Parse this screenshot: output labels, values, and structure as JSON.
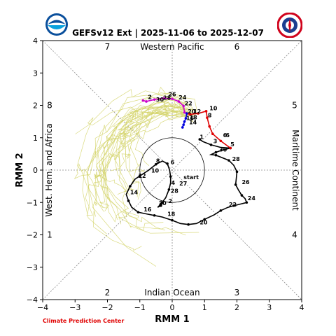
{
  "title": "GEFSv12 Ext | 2025-11-06 to 2025-12-07",
  "footer": "Climate Prediction Center",
  "chart_data": {
    "type": "scatter",
    "xlabel": "RMM 1",
    "ylabel": "RMM 2",
    "xlim": [
      -4,
      4
    ],
    "ylim": [
      -4,
      4
    ],
    "xticks": [
      -4,
      -3,
      -2,
      -1,
      0,
      1,
      2,
      3,
      4
    ],
    "yticks": [
      -4,
      -3,
      -2,
      -1,
      0,
      1,
      2,
      3,
      4
    ],
    "region_labels": {
      "top": "Western Pacific",
      "bottom": "Indian Ocean",
      "left": "West. Hem. and Africa",
      "right": "Maritime Continent"
    },
    "phase_labels": [
      {
        "phase": "1",
        "position": "left-lower"
      },
      {
        "phase": "2",
        "position": "bottom-left"
      },
      {
        "phase": "3",
        "position": "bottom-right"
      },
      {
        "phase": "4",
        "position": "right-lower"
      },
      {
        "phase": "5",
        "position": "right-upper"
      },
      {
        "phase": "6",
        "position": "top-right"
      },
      {
        "phase": "7",
        "position": "top-left"
      },
      {
        "phase": "8",
        "position": "left-upper"
      }
    ],
    "unit_circle_radius": 1,
    "observed": {
      "color": "#000000",
      "start_label": "start",
      "points": [
        {
          "day": "",
          "x": 0.85,
          "y": 0.95
        },
        {
          "day": "2",
          "x": 0.95,
          "y": 0.88
        },
        {
          "day": "3",
          "x": 1.2,
          "y": 0.78
        },
        {
          "day": "4",
          "x": 1.5,
          "y": 0.7
        },
        {
          "day": "5",
          "x": 1.8,
          "y": 0.68
        },
        {
          "day": "",
          "x": 1.55,
          "y": 0.62
        },
        {
          "day": "",
          "x": 1.35,
          "y": 0.55
        },
        {
          "day": "",
          "x": 1.2,
          "y": 0.48
        },
        {
          "day": "",
          "x": 1.35,
          "y": 0.46
        },
        {
          "day": "",
          "x": 1.55,
          "y": 0.38
        },
        {
          "day": "",
          "x": 1.75,
          "y": 0.3
        },
        {
          "day": "",
          "x": 1.9,
          "y": 0.15
        },
        {
          "day": "",
          "x": 2.0,
          "y": -0.05
        },
        {
          "day": "",
          "x": 1.98,
          "y": -0.25
        },
        {
          "day": "",
          "x": 1.96,
          "y": -0.45
        },
        {
          "day": "",
          "x": 2.05,
          "y": -0.62
        },
        {
          "day": "",
          "x": 2.15,
          "y": -0.78
        },
        {
          "day": "",
          "x": 2.25,
          "y": -0.88
        },
        {
          "day": "",
          "x": 2.3,
          "y": -1.0
        },
        {
          "day": "",
          "x": 2.1,
          "y": -1.05
        },
        {
          "day": "",
          "x": 1.9,
          "y": -1.1
        },
        {
          "day": "",
          "x": 1.72,
          "y": -1.15
        },
        {
          "day": "",
          "x": 1.5,
          "y": -1.25
        },
        {
          "day": "",
          "x": 1.3,
          "y": -1.38
        },
        {
          "day": "",
          "x": 1.0,
          "y": -1.52
        },
        {
          "day": "",
          "x": 0.75,
          "y": -1.65
        },
        {
          "day": "",
          "x": 0.5,
          "y": -1.68
        },
        {
          "day": "",
          "x": 0.25,
          "y": -1.65
        },
        {
          "day": "",
          "x": 0.0,
          "y": -1.55
        },
        {
          "day": "",
          "x": -0.3,
          "y": -1.45
        },
        {
          "day": "",
          "x": -0.55,
          "y": -1.4
        },
        {
          "day": "",
          "x": -0.82,
          "y": -1.35
        },
        {
          "day": "",
          "x": -1.05,
          "y": -1.3
        },
        {
          "day": "",
          "x": -1.25,
          "y": -1.15
        },
        {
          "day": "",
          "x": -1.35,
          "y": -0.95
        },
        {
          "day": "",
          "x": -1.42,
          "y": -0.75
        },
        {
          "day": "",
          "x": -1.3,
          "y": -0.5
        },
        {
          "day": "",
          "x": -1.15,
          "y": -0.28
        },
        {
          "day": "",
          "x": -1.0,
          "y": -0.18
        },
        {
          "day": "",
          "x": -0.75,
          "y": -0.02
        },
        {
          "day": "",
          "x": -0.5,
          "y": 0.18
        },
        {
          "day": "",
          "x": -0.3,
          "y": 0.28
        },
        {
          "day": "",
          "x": -0.15,
          "y": 0.2
        },
        {
          "day": "",
          "x": -0.08,
          "y": 0.0
        },
        {
          "day": "",
          "x": -0.05,
          "y": -0.2
        },
        {
          "day": "",
          "x": -0.05,
          "y": -0.4
        },
        {
          "day": "",
          "x": -0.1,
          "y": -0.6
        },
        {
          "day": "",
          "x": -0.2,
          "y": -0.85
        },
        {
          "day": "",
          "x": -0.35,
          "y": -1.05
        },
        {
          "day": "",
          "x": -0.45,
          "y": -1.15
        },
        {
          "day": "",
          "x": -0.35,
          "y": -1.1
        },
        {
          "day": "",
          "x": -0.25,
          "y": -0.95
        }
      ],
      "day_labels": [
        {
          "text": "1",
          "x": 0.85,
          "y": 0.96
        },
        {
          "text": "3",
          "x": 1.27,
          "y": 0.83
        },
        {
          "text": "5",
          "x": 1.8,
          "y": 0.73
        },
        {
          "text": "6",
          "x": 1.57,
          "y": 1.02
        },
        {
          "text": "30",
          "x": 1.45,
          "y": 0.57
        },
        {
          "text": "28",
          "x": 1.85,
          "y": 0.28
        },
        {
          "text": "26",
          "x": 2.15,
          "y": -0.43
        },
        {
          "text": "24",
          "x": 2.33,
          "y": -0.93
        },
        {
          "text": "22",
          "x": 1.75,
          "y": -1.12
        },
        {
          "text": "20",
          "x": 0.85,
          "y": -1.68
        },
        {
          "text": "18",
          "x": -0.15,
          "y": -1.42
        },
        {
          "text": "16",
          "x": -0.88,
          "y": -1.28
        },
        {
          "text": "14",
          "x": -1.3,
          "y": -0.75
        },
        {
          "text": "12",
          "x": -1.05,
          "y": -0.24
        },
        {
          "text": "10",
          "x": -0.65,
          "y": -0.08
        },
        {
          "text": "8",
          "x": -0.5,
          "y": 0.23
        },
        {
          "text": "6",
          "x": -0.05,
          "y": 0.18
        },
        {
          "text": "4",
          "x": -0.03,
          "y": -0.45
        },
        {
          "text": "2",
          "x": -0.12,
          "y": -1.02
        },
        {
          "text": "30",
          "x": -0.42,
          "y": -1.08
        },
        {
          "text": "28",
          "x": -0.05,
          "y": -0.7
        },
        {
          "text": "27",
          "x": 0.22,
          "y": -0.48
        },
        {
          "text": "start",
          "x": 0.35,
          "y": -0.28
        }
      ]
    },
    "forecast_red": {
      "color": "#e00000",
      "points": [
        {
          "x": 1.8,
          "y": 0.68
        },
        {
          "x": 1.5,
          "y": 0.9
        },
        {
          "x": 1.25,
          "y": 1.12
        },
        {
          "x": 1.15,
          "y": 1.35
        },
        {
          "x": 1.08,
          "y": 1.62
        },
        {
          "x": 1.05,
          "y": 1.82
        },
        {
          "x": 0.8,
          "y": 1.75
        },
        {
          "x": 0.55,
          "y": 1.72
        },
        {
          "x": 0.45,
          "y": 1.75
        }
      ],
      "day_labels": [
        {
          "text": "10",
          "x": 1.15,
          "y": 1.85
        },
        {
          "text": "8",
          "x": 1.1,
          "y": 1.63
        },
        {
          "text": "6",
          "x": 1.65,
          "y": 1.02
        }
      ]
    },
    "forecast_blue": {
      "color": "#0000dd",
      "points": [
        {
          "x": 0.45,
          "y": 1.75
        },
        {
          "x": 0.42,
          "y": 1.6
        },
        {
          "x": 0.38,
          "y": 1.5
        },
        {
          "x": 0.35,
          "y": 1.4
        },
        {
          "x": 0.32,
          "y": 1.32
        }
      ],
      "day_labels": [
        {
          "text": "12",
          "x": 0.65,
          "y": 1.75
        },
        {
          "text": "16",
          "x": 0.43,
          "y": 1.55
        },
        {
          "text": "18",
          "x": 0.53,
          "y": 1.57
        },
        {
          "text": "14",
          "x": 0.52,
          "y": 1.42
        }
      ]
    },
    "forecast_magenta": {
      "color": "#cc00cc",
      "points": [
        {
          "x": 0.38,
          "y": 1.78
        },
        {
          "x": 0.35,
          "y": 1.98
        },
        {
          "x": 0.2,
          "y": 2.12
        },
        {
          "x": 0.0,
          "y": 2.2
        },
        {
          "x": -0.25,
          "y": 2.22
        },
        {
          "x": -0.55,
          "y": 2.18
        },
        {
          "x": -0.8,
          "y": 2.12
        },
        {
          "x": -0.9,
          "y": 2.15
        }
      ],
      "day_labels": [
        {
          "text": "20",
          "x": 0.48,
          "y": 1.75
        },
        {
          "text": "22",
          "x": 0.38,
          "y": 2.0
        },
        {
          "text": "24",
          "x": 0.2,
          "y": 2.18
        },
        {
          "text": "26",
          "x": -0.12,
          "y": 2.28
        },
        {
          "text": "28",
          "x": -0.28,
          "y": 2.17
        },
        {
          "text": "30",
          "x": -0.5,
          "y": 2.12
        },
        {
          "text": "2",
          "x": -0.75,
          "y": 2.2
        }
      ]
    },
    "ensemble": {
      "color": "#d4d46a",
      "description": "thin ensemble member tracks concentrated in upper-right region"
    }
  }
}
